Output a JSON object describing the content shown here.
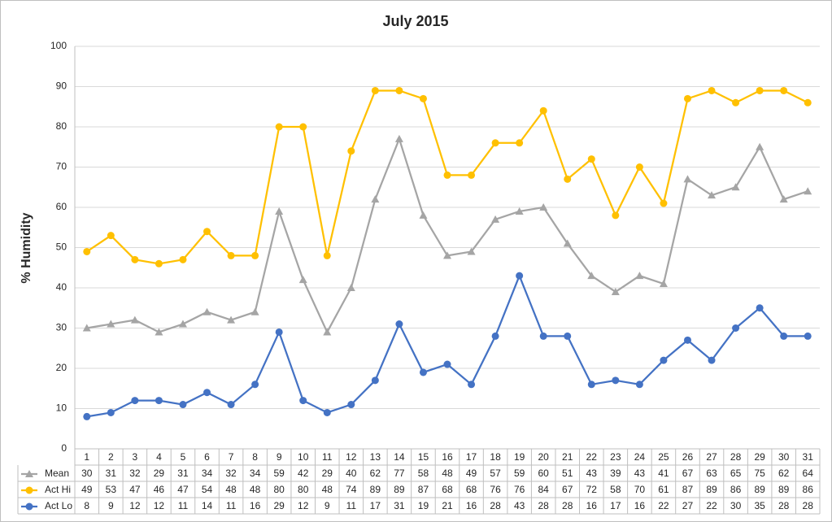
{
  "chart_data": {
    "type": "line",
    "title": "July 2015",
    "y_label": "% Humidity",
    "categories": [
      "1",
      "2",
      "3",
      "4",
      "5",
      "6",
      "7",
      "8",
      "9",
      "10",
      "11",
      "12",
      "13",
      "14",
      "15",
      "16",
      "17",
      "18",
      "19",
      "20",
      "21",
      "22",
      "23",
      "24",
      "25",
      "26",
      "27",
      "28",
      "29",
      "30",
      "31"
    ],
    "series": [
      {
        "name": "Mean",
        "color": "#a5a5a5",
        "marker": "triangle",
        "values": [
          30,
          31,
          32,
          29,
          31,
          34,
          32,
          34,
          59,
          42,
          29,
          40,
          62,
          77,
          58,
          48,
          49,
          57,
          59,
          60,
          51,
          43,
          39,
          43,
          41,
          67,
          63,
          65,
          75,
          62,
          64
        ]
      },
      {
        "name": "Act Hi",
        "color": "#ffc000",
        "marker": "circle",
        "values": [
          49,
          53,
          47,
          46,
          47,
          54,
          48,
          48,
          80,
          80,
          48,
          74,
          89,
          89,
          87,
          68,
          68,
          76,
          76,
          84,
          67,
          72,
          58,
          70,
          61,
          87,
          89,
          86,
          89,
          89,
          86
        ]
      },
      {
        "name": "Act Lo",
        "color": "#4472c4",
        "marker": "circle",
        "values": [
          8,
          9,
          12,
          12,
          11,
          14,
          11,
          16,
          29,
          12,
          9,
          11,
          17,
          31,
          19,
          21,
          16,
          28,
          43,
          28,
          28,
          16,
          17,
          16,
          22,
          27,
          22,
          30,
          35,
          28,
          28
        ]
      }
    ],
    "ylim": [
      0,
      100
    ],
    "yticks": [
      0,
      10,
      20,
      30,
      40,
      50,
      60,
      70,
      80,
      90,
      100
    ],
    "grid": true,
    "data_table": true
  }
}
